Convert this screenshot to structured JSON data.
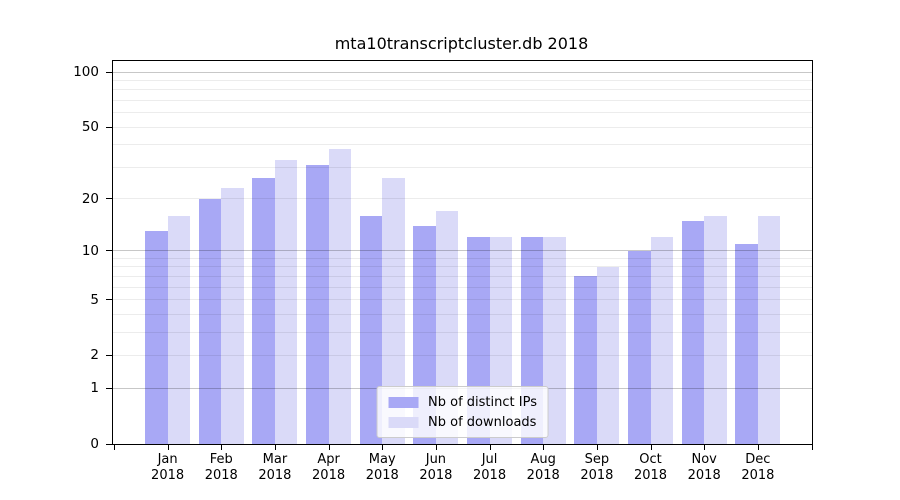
{
  "chart_data": {
    "type": "bar",
    "title": "mta10transcriptcluster.db 2018",
    "year": "2018",
    "categories": [
      "Jan",
      "Feb",
      "Mar",
      "Apr",
      "May",
      "Jun",
      "Jul",
      "Aug",
      "Sep",
      "Oct",
      "Nov",
      "Dec"
    ],
    "series": [
      {
        "name": "Nb of distinct IPs",
        "color": "#a8a8f5",
        "values": [
          13,
          20,
          26,
          31,
          16,
          14,
          12,
          12,
          7,
          10,
          15,
          11
        ]
      },
      {
        "name": "Nb of downloads",
        "color": "#dadaf8",
        "values": [
          16,
          23,
          33,
          38,
          26,
          17,
          12,
          12,
          8,
          12,
          16,
          16
        ]
      }
    ],
    "y_axis": {
      "scale": "log1p",
      "max": 115,
      "tick_labels": [
        0,
        1,
        2,
        5,
        10,
        20,
        50,
        100
      ],
      "minor_gridlines": [
        2,
        3,
        4,
        5,
        6,
        7,
        8,
        9,
        20,
        30,
        40,
        50,
        60,
        70,
        80,
        90
      ],
      "major_gridlines": [
        1,
        10,
        100
      ]
    },
    "legend": {
      "position": "lower center"
    }
  }
}
